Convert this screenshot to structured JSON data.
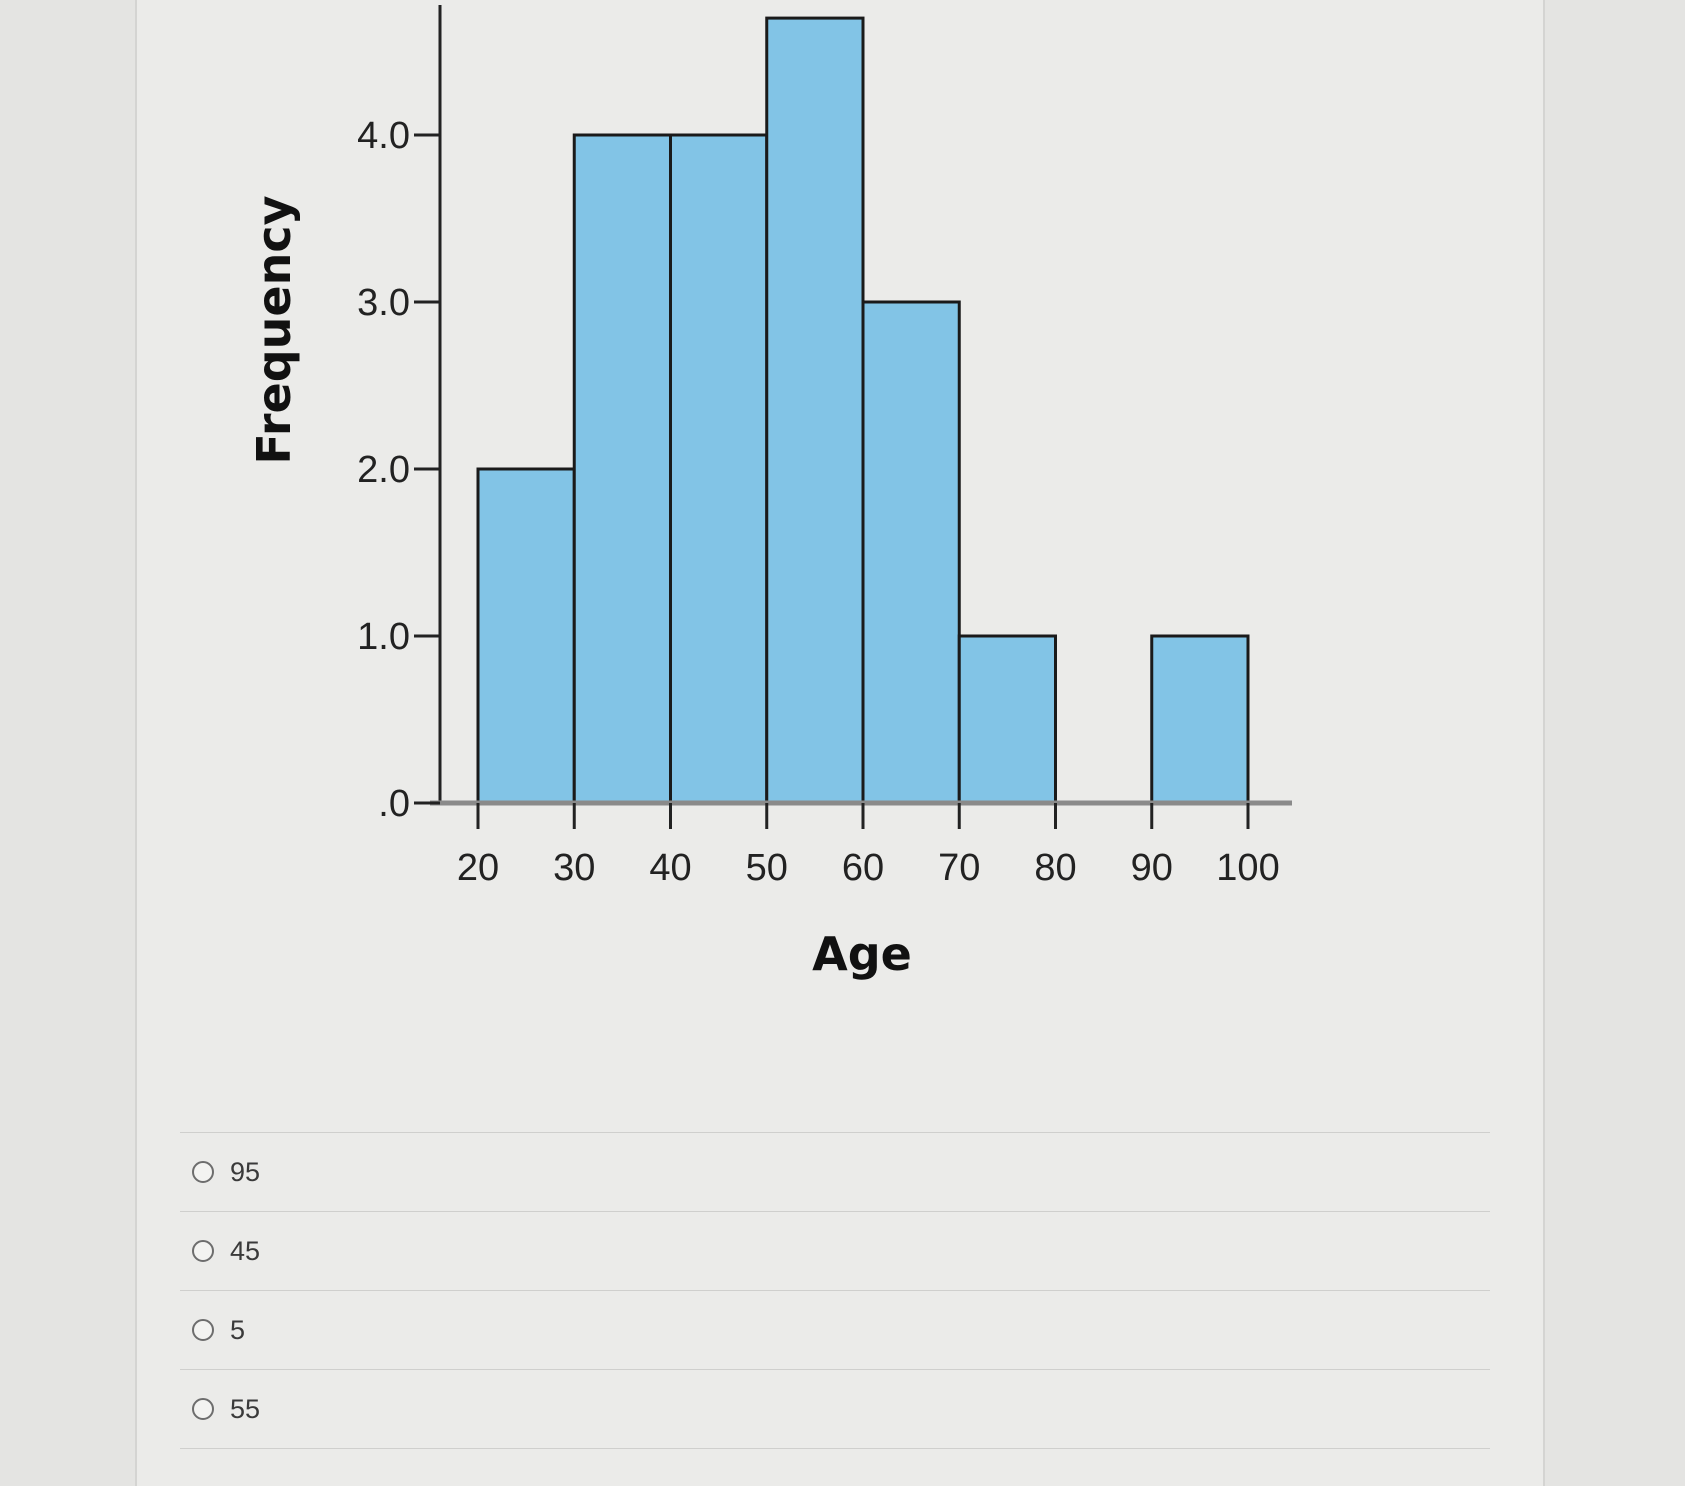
{
  "chart_data": {
    "type": "bar",
    "xlabel": "Age",
    "ylabel": "Frequency",
    "bins": [
      {
        "start": 20,
        "end": 30,
        "value": 2
      },
      {
        "start": 30,
        "end": 40,
        "value": 4
      },
      {
        "start": 40,
        "end": 50,
        "value": 4
      },
      {
        "start": 50,
        "end": 60,
        "value": 5
      },
      {
        "start": 60,
        "end": 70,
        "value": 3
      },
      {
        "start": 70,
        "end": 80,
        "value": 1
      },
      {
        "start": 90,
        "end": 100,
        "value": 1
      }
    ],
    "x_ticks": [
      "20",
      "30",
      "40",
      "50",
      "60",
      "70",
      "80",
      "90",
      "100"
    ],
    "x_tick_values": [
      20,
      30,
      40,
      50,
      60,
      70,
      80,
      90,
      100
    ],
    "y_ticks": [
      ".0",
      "1.0",
      "2.0",
      "3.0",
      "4.0"
    ],
    "y_tick_values": [
      0,
      1,
      2,
      3,
      4
    ],
    "xlim": [
      20,
      100
    ],
    "ylim": [
      0,
      4.7
    ],
    "grid": false,
    "colors": {
      "bar_fill": "#82c4e6",
      "bar_stroke": "#1a1a1a",
      "axis": "#8a8a8a"
    }
  },
  "options": [
    {
      "label": "95"
    },
    {
      "label": "45"
    },
    {
      "label": "5"
    },
    {
      "label": "55"
    }
  ]
}
